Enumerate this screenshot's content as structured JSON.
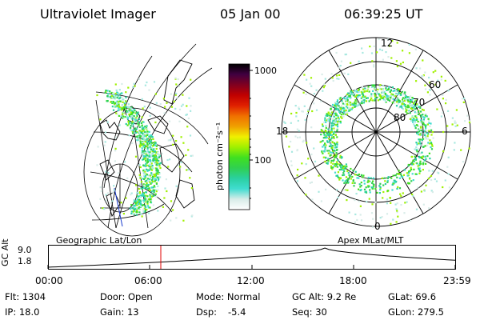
{
  "header": {
    "instrument": "Ultraviolet Imager",
    "date": "05 Jan 00",
    "time": "06:39:25 UT"
  },
  "colorbar": {
    "label": "photon cm⁻²s⁻¹",
    "ticks": [
      "1000",
      "100"
    ],
    "scale": "log",
    "stops": [
      "#ffffff",
      "#d8ece8",
      "#40dcd0",
      "#2ad0a0",
      "#30d050",
      "#40e020",
      "#a0f000",
      "#f0f000",
      "#f0a000",
      "#f07000",
      "#e02000",
      "#c00000",
      "#800020",
      "#400040",
      "#000000"
    ]
  },
  "left_panel": {
    "caption": "Geographic Lat/Lon"
  },
  "right_panel": {
    "caption": "Apex MLat/MLT",
    "mlt_labels": {
      "top": "12",
      "left": "18",
      "right": "6",
      "bottom": "0"
    },
    "lat_labels": [
      "60",
      "70",
      "80"
    ]
  },
  "altitude_plot": {
    "ylabel": "GC Alt",
    "y_top": "9.0",
    "y_bottom": "1.8",
    "x_ticks": [
      "00:00",
      "06:00",
      "12:00",
      "18:00",
      "23:59"
    ],
    "current_time_fraction": 0.277,
    "marker_color": "#e00000"
  },
  "info": {
    "flt": "Flt: 1304",
    "door": "Door: Open",
    "mode": "Mode: Normal",
    "gcalt": "GC Alt: 9.2 Re",
    "glat": "GLat:  69.6",
    "ip": "IP: 18.0",
    "gain": "Gain: 13",
    "dsp_label": "Dsp:",
    "dsp_value": "-5.4",
    "seq": "Seq: 30",
    "glon": "GLon: 279.5"
  }
}
